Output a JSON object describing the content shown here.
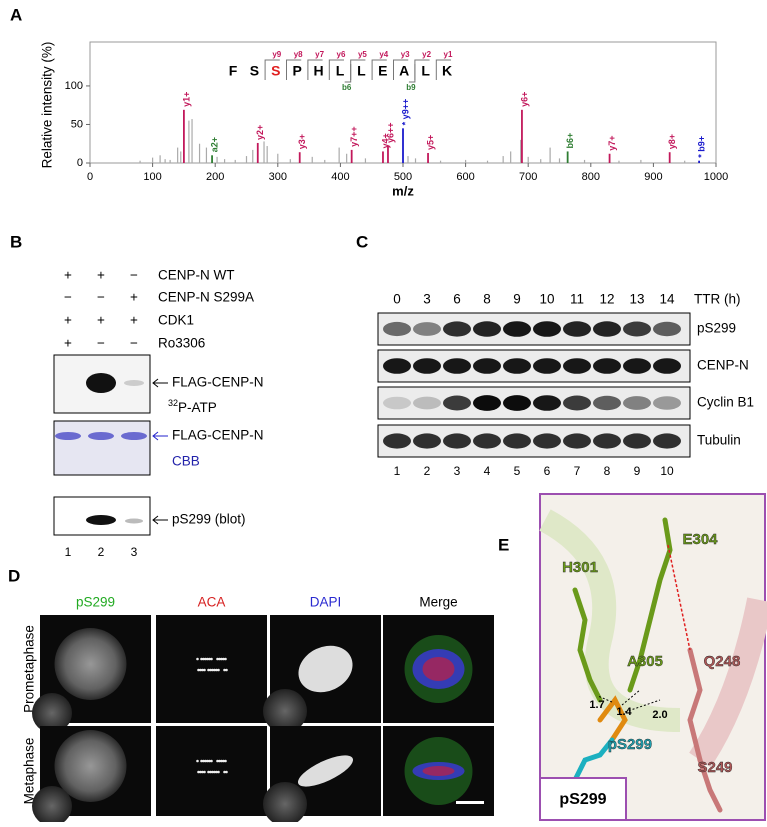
{
  "panel_a": {
    "label": "A",
    "ylabel": "Relative intensity (%)",
    "xlabel": "m/z",
    "xlim": [
      0,
      1000
    ],
    "ylim": [
      0,
      157
    ],
    "xticks": [
      0,
      100,
      200,
      300,
      400,
      500,
      600,
      700,
      800,
      900,
      1000
    ],
    "yticks": [
      0,
      50,
      100
    ],
    "sequence": [
      {
        "letter": "F",
        "color": "#000000"
      },
      {
        "letter": "S",
        "color": "#000000"
      },
      {
        "letter": "S",
        "color": "#e02020"
      },
      {
        "letter": "P",
        "color": "#000000"
      },
      {
        "letter": "H",
        "color": "#000000"
      },
      {
        "letter": "L",
        "color": "#000000"
      },
      {
        "letter": "L",
        "color": "#000000"
      },
      {
        "letter": "E",
        "color": "#000000"
      },
      {
        "letter": "A",
        "color": "#000000"
      },
      {
        "letter": "L",
        "color": "#000000"
      },
      {
        "letter": "K",
        "color": "#000000"
      }
    ],
    "y_ions": [
      "y9",
      "y8",
      "y7",
      "y6",
      "y5",
      "y4",
      "y3",
      "y2",
      "y1"
    ],
    "b_ions": [
      "b6",
      "b9"
    ],
    "peaks": [
      {
        "mz": 150,
        "intensity": 69,
        "label": "y1+",
        "color": "#c2185b"
      },
      {
        "mz": 195,
        "intensity": 10,
        "label": "a2+",
        "color": "#2e7d32"
      },
      {
        "mz": 268,
        "intensity": 26,
        "label": "y2+",
        "color": "#c2185b"
      },
      {
        "mz": 335,
        "intensity": 14,
        "label": "y3+",
        "color": "#c2185b"
      },
      {
        "mz": 418,
        "intensity": 17,
        "label": "y7++",
        "color": "#c2185b"
      },
      {
        "mz": 468,
        "intensity": 15,
        "label": "y4+",
        "color": "#c2185b"
      },
      {
        "mz": 476,
        "intensity": 22,
        "label": "y6++",
        "color": "#c2185b"
      },
      {
        "mz": 500,
        "intensity": 45,
        "label": "* y9++",
        "color": "#1a1acc"
      },
      {
        "mz": 540,
        "intensity": 13,
        "label": "y5+",
        "color": "#c2185b"
      },
      {
        "mz": 690,
        "intensity": 69,
        "label": "y6+",
        "color": "#c2185b"
      },
      {
        "mz": 763,
        "intensity": 15,
        "label": "b6+",
        "color": "#2e7d32"
      },
      {
        "mz": 830,
        "intensity": 12,
        "label": "y7+",
        "color": "#c2185b"
      },
      {
        "mz": 926,
        "intensity": 14,
        "label": "y8+",
        "color": "#c2185b"
      },
      {
        "mz": 973,
        "intensity": 3,
        "label": "* b9+",
        "color": "#1a1acc"
      }
    ],
    "background": {
      "mz": [
        80,
        100,
        112,
        120,
        128,
        140,
        145,
        158,
        163,
        175,
        186,
        203,
        215,
        232,
        250,
        260,
        278,
        283,
        300,
        320,
        355,
        375,
        398,
        410,
        440,
        508,
        520,
        560,
        600,
        635,
        660,
        672,
        688,
        700,
        720,
        735,
        750,
        790,
        845,
        880,
        950
      ],
      "intensity": [
        3,
        7,
        10,
        5,
        4,
        20,
        15,
        55,
        57,
        25,
        20,
        8,
        5,
        4,
        9,
        17,
        28,
        22,
        12,
        5,
        8,
        4,
        20,
        12,
        6,
        9,
        6,
        3,
        4,
        3,
        9,
        15,
        30,
        8,
        5,
        20,
        6,
        4,
        3,
        4,
        3
      ]
    }
  },
  "panel_b": {
    "label": "B",
    "rows": [
      {
        "signs": [
          "+",
          "+",
          "−"
        ],
        "label": "CENP-N WT"
      },
      {
        "signs": [
          "−",
          "−",
          "+"
        ],
        "label": "CENP-N S299A"
      },
      {
        "signs": [
          "+",
          "+",
          "+"
        ],
        "label": "CDK1"
      },
      {
        "signs": [
          "+",
          "−",
          "−"
        ],
        "label": "Ro3306"
      }
    ],
    "blot1_label": "FLAG-CENP-N",
    "blot1_sub": {
      "sup": "32",
      "text": "P-ATP"
    },
    "blot2_label": "FLAG-CENP-N",
    "blot2_sub": "CBB",
    "blot3_label": "pS299 (blot)",
    "lanes": [
      "1",
      "2",
      "3"
    ]
  },
  "panel_c": {
    "label": "C",
    "times": [
      "0",
      "3",
      "6",
      "8",
      "9",
      "10",
      "11",
      "12",
      "13",
      "14"
    ],
    "time_unit": "TTR (h)",
    "blots": [
      "pS299",
      "CENP-N",
      "Cyclin B1",
      "Tubulin"
    ],
    "lanes": [
      "1",
      "2",
      "3",
      "4",
      "5",
      "6",
      "7",
      "8",
      "9",
      "10"
    ]
  },
  "panel_d": {
    "label": "D",
    "columns": [
      {
        "text": "pS299",
        "color": "#22aa22"
      },
      {
        "text": "ACA",
        "color": "#d62020"
      },
      {
        "text": "DAPI",
        "color": "#2a2ad0"
      },
      {
        "text": "Merge",
        "color": "#000000"
      }
    ],
    "rows": [
      "Prometaphase",
      "Metaphase"
    ]
  },
  "panel_e": {
    "label": "E",
    "residues": {
      "e304": "E304",
      "h301": "H301",
      "a305": "A305",
      "q248": "Q248",
      "ps299": "pS299",
      "s249": "S249"
    },
    "distances": [
      "1.7",
      "1.4",
      "2.0"
    ],
    "box_label": "pS299"
  }
}
